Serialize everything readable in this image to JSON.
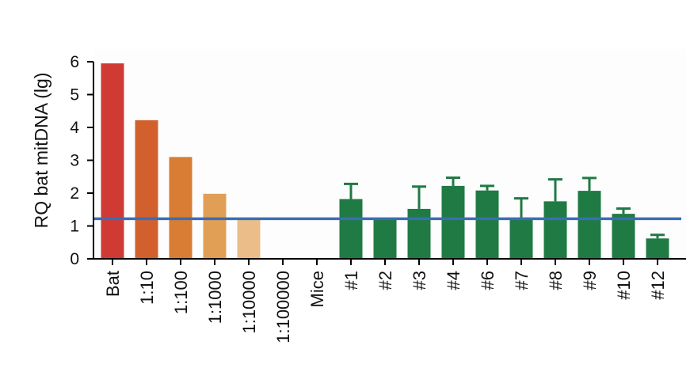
{
  "chart_data": {
    "type": "bar",
    "ylabel": "RQ bat mitDNA (lg)",
    "xlabel": "",
    "ylim": [
      0,
      6
    ],
    "yticks": [
      0,
      1,
      2,
      3,
      4,
      5,
      6
    ],
    "categories": [
      "Bat",
      "1:10",
      "1:100",
      "1:1000",
      "1:10000",
      "1:100000",
      "Mice",
      "#1",
      "#2",
      "#3",
      "#4",
      "#6",
      "#7",
      "#8",
      "#9",
      "#10",
      "#12"
    ],
    "values": [
      5.95,
      4.22,
      3.1,
      1.98,
      1.22,
      0,
      0,
      1.82,
      1.22,
      1.52,
      2.22,
      2.08,
      1.25,
      1.75,
      2.07,
      1.37,
      0.62
    ],
    "error_upper": [
      null,
      null,
      null,
      null,
      null,
      null,
      null,
      2.28,
      null,
      2.2,
      2.47,
      2.22,
      1.84,
      2.42,
      2.46,
      1.53,
      0.73
    ],
    "bar_colors": [
      "#d03a35",
      "#d2602d",
      "#d87d33",
      "#e19f55",
      "#ebbd88",
      null,
      null,
      "#1f7a44",
      "#1f7a44",
      "#1f7a44",
      "#1f7a44",
      "#1f7a44",
      "#1f7a44",
      "#1f7a44",
      "#1f7a44",
      "#1f7a44",
      "#1f7a44"
    ],
    "reference_line": {
      "value": 1.22,
      "color": "#3b6db5"
    },
    "grid": false,
    "legend": "none"
  }
}
